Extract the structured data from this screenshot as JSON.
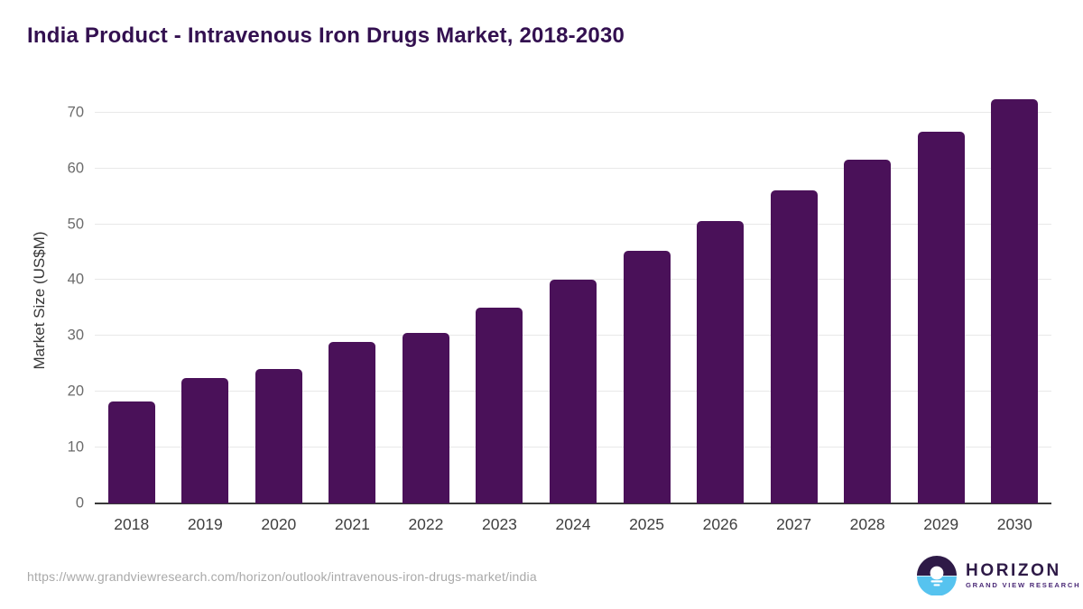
{
  "header": {
    "title": "India Product - Intravenous Iron Drugs Market, 2018-2030"
  },
  "chart_data": {
    "type": "bar",
    "title": "India Product - Intravenous Iron Drugs Market, 2018-2030",
    "categories": [
      "2018",
      "2019",
      "2020",
      "2021",
      "2022",
      "2023",
      "2024",
      "2025",
      "2026",
      "2027",
      "2028",
      "2029",
      "2030"
    ],
    "values": [
      18.3,
      22.4,
      24.0,
      28.9,
      30.6,
      35.1,
      40.1,
      45.3,
      50.6,
      56.0,
      61.5,
      66.6,
      72.3
    ],
    "xlabel": "",
    "ylabel": "Market Size (US$M)",
    "ylim": [
      0,
      72.7
    ],
    "yticks": [
      0,
      10,
      20,
      30,
      40,
      50,
      60,
      70
    ],
    "grid": "horizontal",
    "legend": "none",
    "bar_color": "#4A1159"
  },
  "footer": {
    "source_url": "https://www.grandviewresearch.com/horizon/outlook/intravenous-iron-drugs-market/india",
    "logo": {
      "title": "HORIZON",
      "subtitle": "GRAND VIEW RESEARCH"
    }
  },
  "icons": {
    "logo": "horizon-sun-over-water-icon"
  },
  "colors": {
    "bar": "#4A1159",
    "title_text": "#331050",
    "axis_line": "#3a3a3a",
    "gridline": "#e8e8e8",
    "x_tick_text": "#3f3f3f",
    "y_tick_text": "#6b6b6b",
    "url_text": "#a9a9a9",
    "logo_dark_purple": "#2e1a47",
    "logo_light_blue": "#56c3ef",
    "logo_subtitle_purple": "#4b2a77"
  }
}
